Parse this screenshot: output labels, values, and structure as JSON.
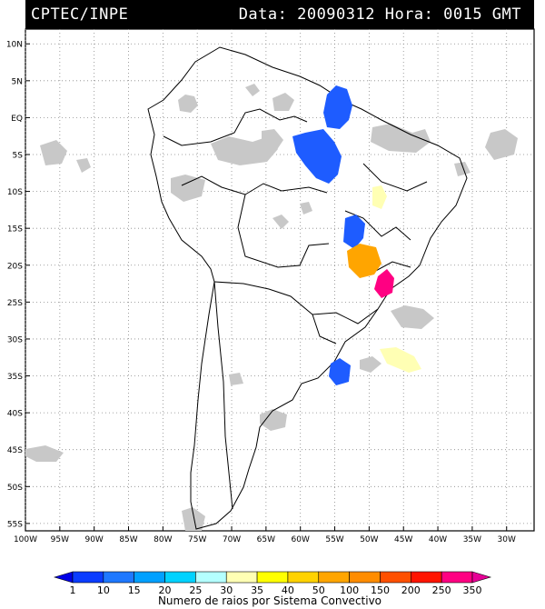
{
  "header": {
    "source": "CPTEC/INPE",
    "info": "Data: 20090312 Hora: 0015 GMT"
  },
  "map": {
    "lon_min": -100,
    "lon_max": -26,
    "lat_min": -56,
    "lat_max": 12,
    "lat_labels": [
      "10N",
      "5N",
      "EQ",
      "5S",
      "10S",
      "15S",
      "20S",
      "25S",
      "30S",
      "35S",
      "40S",
      "45S",
      "50S",
      "55S"
    ],
    "lon_labels": [
      "100W",
      "95W",
      "90W",
      "85W",
      "80W",
      "75W",
      "70W",
      "65W",
      "60W",
      "55W",
      "50W",
      "45W",
      "40W",
      "35W",
      "30W"
    ]
  },
  "legend": {
    "values": [
      "1",
      "10",
      "15",
      "20",
      "25",
      "30",
      "35",
      "40",
      "50",
      "100",
      "150",
      "200",
      "250",
      "350"
    ],
    "colors": [
      "#0000e6",
      "#0a3cff",
      "#1e78ff",
      "#00a0ff",
      "#00d2ff",
      "#b4ffff",
      "#ffffb4",
      "#ffff00",
      "#ffd200",
      "#ffa500",
      "#ff8c00",
      "#ff5000",
      "#ff1400",
      "#ff0082",
      "#e60096"
    ],
    "caption": "Numero de raios por Sistema Convectivo"
  }
}
